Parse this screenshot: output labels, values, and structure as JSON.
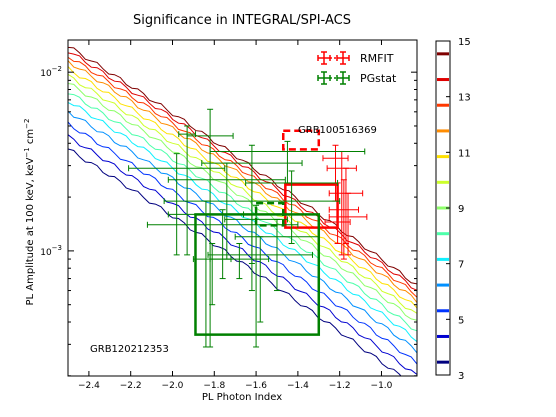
{
  "chart_data": {
    "type": "line",
    "title": "Significance in INTEGRAL/SPI-ACS",
    "xlabel": "PL Photon Index",
    "ylabel_parts": {
      "main": "PL Amplitude at 100 keV, keV",
      "exp1": "−1",
      "mid": " cm",
      "exp2": "−2"
    },
    "xlim": [
      -2.5,
      -0.83
    ],
    "ylim_log10": [
      -3.7,
      -1.82
    ],
    "yscale": "log",
    "xticks": [
      -2.4,
      -2.2,
      -2.0,
      -1.8,
      -1.6,
      -1.4,
      -1.2,
      -1.0
    ],
    "xtick_labels": [
      "−2.4",
      "−2.2",
      "−2.0",
      "−1.8",
      "−1.6",
      "−1.4",
      "−1.2",
      "−1.0"
    ],
    "yticks": [
      {
        "value": 0.001,
        "base": "10",
        "exp": "−3"
      },
      {
        "value": 0.01,
        "base": "10",
        "exp": "−2"
      }
    ],
    "colorbar": {
      "min": 3,
      "max": 15,
      "ticks": [
        3,
        5,
        7,
        9,
        11,
        13,
        15
      ],
      "tick_labels": [
        "3",
        "5",
        "7",
        "9",
        "11",
        "13",
        "15"
      ],
      "colors": [
        "#00007f",
        "#0000d0",
        "#0034ff",
        "#0090ff",
        "#0ff0ff",
        "#4dffaa",
        "#8dff6a",
        "#cdff2a",
        "#ffe100",
        "#ff8c00",
        "#ff3800",
        "#e00000",
        "#7f0000"
      ]
    },
    "contours": [
      {
        "level": 3,
        "color": "#00007f",
        "log10_at_x_min": -2.43
      },
      {
        "level": 4,
        "color": "#0000d0",
        "log10_at_x_min": -2.36
      },
      {
        "level": 5,
        "color": "#0034ff",
        "log10_at_x_min": -2.29
      },
      {
        "level": 6,
        "color": "#0090ff",
        "log10_at_x_min": -2.22
      },
      {
        "level": 7,
        "color": "#0ff0ff",
        "log10_at_x_min": -2.16
      },
      {
        "level": 8,
        "color": "#4dffaa",
        "log10_at_x_min": -2.11
      },
      {
        "level": 9,
        "color": "#8dff6a",
        "log10_at_x_min": -2.06
      },
      {
        "level": 10,
        "color": "#cdff2a",
        "log10_at_x_min": -2.02
      },
      {
        "level": 11,
        "color": "#ffe100",
        "log10_at_x_min": -1.98
      },
      {
        "level": 12,
        "color": "#ff8c00",
        "log10_at_x_min": -1.94
      },
      {
        "level": 13,
        "color": "#ff3800",
        "log10_at_x_min": -1.91
      },
      {
        "level": 14,
        "color": "#e00000",
        "log10_at_x_min": -1.88
      },
      {
        "level": 15,
        "color": "#7f0000",
        "log10_at_x_min": -1.855
      }
    ],
    "contour_slope_log10_per_unit_x": 0.73,
    "series": [
      {
        "name": "RMFIT",
        "color": "#ff0000",
        "boxes": [
          {
            "x": [
              -1.47,
              -1.3
            ],
            "y": [
              0.0037,
              0.0047
            ],
            "style": "dashed"
          },
          {
            "x": [
              -1.46,
              -1.21
            ],
            "y": [
              0.00135,
              0.00235
            ],
            "style": "solid"
          }
        ],
        "points": [
          {
            "x": -1.22,
            "y": 0.0033,
            "xerr": 0.06,
            "ylo": 0.0019,
            "yhi": 0.0039
          },
          {
            "x": -1.19,
            "y": 0.0029,
            "xerr": 0.07,
            "ylo": 0.00095,
            "yhi": 0.0036
          },
          {
            "x": -1.17,
            "y": 0.0021,
            "xerr": 0.08,
            "ylo": 0.0011,
            "yhi": 0.0029
          },
          {
            "x": -1.18,
            "y": 0.0017,
            "xerr": 0.07,
            "ylo": 0.0009,
            "yhi": 0.0025
          },
          {
            "x": -1.16,
            "y": 0.00155,
            "xerr": 0.09,
            "ylo": 0.00095,
            "yhi": 0.0021
          },
          {
            "x": -1.21,
            "y": 0.00145,
            "xerr": 0.06,
            "ylo": 0.0011,
            "yhi": 0.0024
          }
        ]
      },
      {
        "name": "PGstat",
        "color": "#008000",
        "boxes": [
          {
            "x": [
              -1.6,
              -1.47
            ],
            "y": [
              0.00139,
              0.00185
            ],
            "style": "dashed"
          },
          {
            "x": [
              -1.89,
              -1.3
            ],
            "y": [
              0.00034,
              0.0016
            ],
            "style": "solid"
          }
        ],
        "points": [
          {
            "x": -1.82,
            "y": 0.0044,
            "xerr": 0.11,
            "ylo": 0.00029,
            "yhi": 0.0062
          },
          {
            "x": -1.93,
            "y": 0.0045,
            "xerr": 0.04,
            "ylo": 0.00095,
            "yhi": 0.005
          },
          {
            "x": -1.98,
            "y": 0.0029,
            "xerr": 0.23,
            "ylo": 0.00095,
            "yhi": 0.0035
          },
          {
            "x": -1.62,
            "y": 0.0031,
            "xerr": 0.24,
            "ylo": 0.00085,
            "yhi": 0.0039
          },
          {
            "x": -1.45,
            "y": 0.0036,
            "xerr": 0.37,
            "ylo": 0.0024,
            "yhi": 0.0041
          },
          {
            "x": -1.74,
            "y": 0.0025,
            "xerr": 0.28,
            "ylo": 0.0009,
            "yhi": 0.0031
          },
          {
            "x": -1.43,
            "y": 0.0024,
            "xerr": 0.22,
            "ylo": 0.0011,
            "yhi": 0.0028
          },
          {
            "x": -1.62,
            "y": 0.0019,
            "xerr": 0.42,
            "ylo": 0.0006,
            "yhi": 0.0024
          },
          {
            "x": -1.84,
            "y": 0.0016,
            "xerr": 0.18,
            "ylo": 0.00029,
            "yhi": 0.0019
          },
          {
            "x": -1.76,
            "y": 0.0014,
            "xerr": 0.36,
            "ylo": 0.0007,
            "yhi": 0.0017
          },
          {
            "x": -1.6,
            "y": 0.0015,
            "xerr": 0.15,
            "ylo": 0.00029,
            "yhi": 0.0018
          },
          {
            "x": -1.5,
            "y": 0.0012,
            "xerr": 0.2,
            "ylo": 0.0006,
            "yhi": 0.0015
          },
          {
            "x": -1.81,
            "y": 0.0009,
            "xerr": 0.09,
            "ylo": 0.0005,
            "yhi": 0.0011
          },
          {
            "x": -1.68,
            "y": 0.0009,
            "xerr": 0.14,
            "ylo": 0.0007,
            "yhi": 0.0011
          },
          {
            "x": -1.58,
            "y": 0.00095,
            "xerr": 0.25,
            "ylo": 0.0004,
            "yhi": 0.0012
          }
        ]
      }
    ],
    "legend": {
      "placement": "top-right",
      "entries": [
        "RMFIT",
        "PGstat"
      ]
    },
    "annotations": [
      "GRB100516369",
      "GRB120212353"
    ],
    "grid": false
  }
}
